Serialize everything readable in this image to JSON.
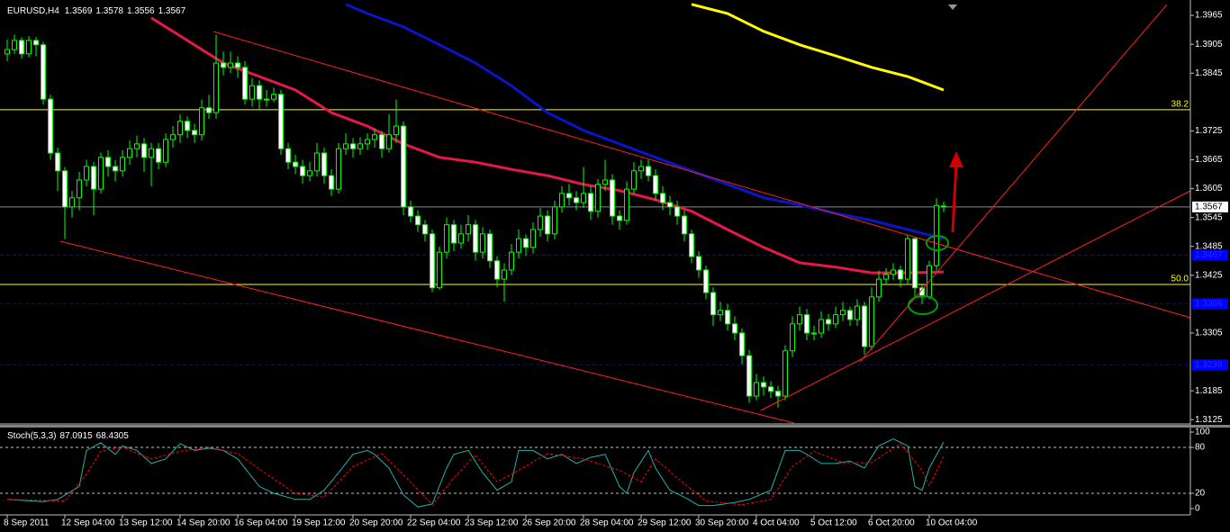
{
  "chart_data": [
    {
      "type": "candlestick",
      "symbol": "EURUSD,H4",
      "categories": [
        "8 Sep 2011",
        null,
        null,
        null,
        null,
        null,
        null,
        null,
        "12 Sep 04:00",
        null,
        null,
        null,
        null,
        null,
        null,
        null,
        "13 Sep 12:00",
        null,
        null,
        null,
        null,
        null,
        null,
        null,
        "14 Sep 20:00",
        null,
        null,
        null,
        null,
        null,
        null,
        null,
        "16 Sep 04:00",
        null,
        null,
        null,
        null,
        null,
        null,
        null,
        "19 Sep 12:00",
        null,
        null,
        null,
        null,
        null,
        null,
        null,
        "20 Sep 20:00",
        null,
        null,
        null,
        null,
        null,
        null,
        null,
        "22 Sep 04:00",
        null,
        null,
        null,
        null,
        null,
        null,
        null,
        "23 Sep 12:00",
        null,
        null,
        null,
        null,
        null,
        null,
        null,
        "26 Sep 20:00",
        null,
        null,
        null,
        null,
        null,
        null,
        null,
        "28 Sep 04:00",
        null,
        null,
        null,
        null,
        null,
        null,
        null,
        "29 Sep 12:00",
        null,
        null,
        null,
        null,
        null,
        null,
        null,
        "30 Sep 20:00",
        null,
        null,
        null,
        null,
        null,
        null,
        null,
        "4 Oct 04:00",
        null,
        null,
        null,
        null,
        null,
        null,
        null,
        "5 Oct 12:00",
        null,
        null,
        null,
        null,
        null,
        null,
        null,
        "6 Oct 20:00",
        null,
        null,
        null,
        null,
        null,
        null,
        null,
        "10 Oct 04:00",
        null,
        null
      ],
      "open": [
        1.3885,
        1.3894,
        1.3913,
        1.3885,
        1.3913,
        1.3904,
        1.3791,
        1.3679,
        1.3642,
        1.3567,
        1.3586,
        1.3623,
        1.3651,
        1.3604,
        1.367,
        1.3651,
        1.3642,
        1.367,
        1.3688,
        1.3698,
        1.367,
        1.3688,
        1.366,
        1.3707,
        1.3717,
        1.3745,
        1.3726,
        1.3717,
        1.3773,
        1.3763,
        1.3866,
        1.3857,
        1.3866,
        1.3857,
        1.3791,
        1.3819,
        1.3791,
        1.3791,
        1.3801,
        1.3688,
        1.366,
        1.3651,
        1.3632,
        1.3642,
        1.3679,
        1.3632,
        1.3604,
        1.3688,
        1.3698,
        1.3688,
        1.3698,
        1.3707,
        1.3717,
        1.3688,
        1.3717,
        1.3735,
        1.3567,
        1.3548,
        1.353,
        1.3511,
        1.3399,
        1.3473,
        1.353,
        1.3492,
        1.3511,
        1.353,
        1.3473,
        1.3511,
        1.3455,
        1.3417,
        1.3436,
        1.3473,
        1.3501,
        1.3483,
        1.352,
        1.3548,
        1.3511,
        1.3567,
        1.3595,
        1.3586,
        1.3576,
        1.3595,
        1.3558,
        1.3614,
        1.3623,
        1.3548,
        1.3539,
        1.3604,
        1.3642,
        1.3651,
        1.3632,
        1.3595,
        1.3576,
        1.3567,
        1.3548,
        1.3511,
        1.3464,
        1.3436,
        1.3389,
        1.3343,
        1.3352,
        1.3324,
        1.3305,
        1.3258,
        1.3174,
        1.3202,
        1.3193,
        1.3184,
        1.3174,
        1.3268,
        1.3324,
        1.3343,
        1.3305,
        1.3305,
        1.3333,
        1.3324,
        1.3343,
        1.3352,
        1.3333,
        1.3361,
        1.3277,
        1.338,
        1.3417,
        1.3427,
        1.3436,
        1.3417,
        1.3501,
        1.3399,
        1.338,
        1.3445,
        1.3569
      ],
      "high": [
        1.3915,
        1.3925,
        1.392,
        1.3922,
        1.392,
        1.391,
        1.38,
        1.369,
        1.365,
        1.36,
        1.364,
        1.3665,
        1.366,
        1.368,
        1.3685,
        1.3665,
        1.3685,
        1.3705,
        1.3715,
        1.371,
        1.37,
        1.37,
        1.372,
        1.3735,
        1.376,
        1.3755,
        1.374,
        1.379,
        1.38,
        1.3925,
        1.389,
        1.389,
        1.388,
        1.387,
        1.3835,
        1.383,
        1.381,
        1.3815,
        1.381,
        1.37,
        1.3675,
        1.3665,
        1.366,
        1.37,
        1.369,
        1.3645,
        1.37,
        1.372,
        1.371,
        1.3712,
        1.372,
        1.373,
        1.3725,
        1.376,
        1.379,
        1.3745,
        1.358,
        1.356,
        1.354,
        1.352,
        1.3485,
        1.3545,
        1.354,
        1.353,
        1.355,
        1.354,
        1.3525,
        1.352,
        1.3465,
        1.345,
        1.349,
        1.352,
        1.351,
        1.3535,
        1.3565,
        1.356,
        1.358,
        1.361,
        1.3615,
        1.36,
        1.365,
        1.361,
        1.3625,
        1.3665,
        1.3635,
        1.356,
        1.362,
        1.366,
        1.3665,
        1.3665,
        1.3645,
        1.361,
        1.359,
        1.358,
        1.356,
        1.352,
        1.3475,
        1.3445,
        1.34,
        1.337,
        1.3365,
        1.334,
        1.3315,
        1.327,
        1.322,
        1.3215,
        1.3205,
        1.3195,
        1.328,
        1.334,
        1.336,
        1.3355,
        1.332,
        1.335,
        1.3345,
        1.336,
        1.337,
        1.336,
        1.3375,
        1.337,
        1.34,
        1.3435,
        1.344,
        1.345,
        1.3445,
        1.351,
        1.3505,
        1.3405,
        1.3455,
        1.3585,
        1.3578
      ],
      "low": [
        1.387,
        1.3885,
        1.3875,
        1.3878,
        1.388,
        1.378,
        1.3665,
        1.36,
        1.35,
        1.3545,
        1.356,
        1.361,
        1.355,
        1.3595,
        1.363,
        1.362,
        1.363,
        1.3655,
        1.367,
        1.364,
        1.361,
        1.3645,
        1.365,
        1.369,
        1.37,
        1.371,
        1.37,
        1.3705,
        1.375,
        1.375,
        1.384,
        1.3845,
        1.3835,
        1.378,
        1.3775,
        1.377,
        1.3775,
        1.3785,
        1.3675,
        1.3645,
        1.3635,
        1.3615,
        1.362,
        1.363,
        1.3615,
        1.359,
        1.3595,
        1.3675,
        1.367,
        1.3675,
        1.3685,
        1.369,
        1.367,
        1.368,
        1.37,
        1.355,
        1.3535,
        1.3515,
        1.3495,
        1.339,
        1.3395,
        1.346,
        1.3475,
        1.348,
        1.3495,
        1.3455,
        1.346,
        1.344,
        1.34,
        1.337,
        1.3425,
        1.346,
        1.3465,
        1.347,
        1.3505,
        1.3495,
        1.35,
        1.3555,
        1.357,
        1.356,
        1.3565,
        1.354,
        1.3545,
        1.36,
        1.353,
        1.352,
        1.353,
        1.3595,
        1.3625,
        1.362,
        1.358,
        1.356,
        1.355,
        1.353,
        1.3495,
        1.345,
        1.342,
        1.3375,
        1.332,
        1.333,
        1.331,
        1.329,
        1.324,
        1.316,
        1.3165,
        1.3175,
        1.317,
        1.315,
        1.3165,
        1.3255,
        1.331,
        1.329,
        1.329,
        1.3295,
        1.331,
        1.3315,
        1.333,
        1.332,
        1.332,
        1.326,
        1.327,
        1.337,
        1.3405,
        1.3415,
        1.34,
        1.3405,
        1.338,
        1.3365,
        1.3375,
        1.3435,
        1.3556
      ],
      "close": [
        1.3894,
        1.3913,
        1.3885,
        1.3913,
        1.3904,
        1.3791,
        1.3679,
        1.3642,
        1.3567,
        1.3586,
        1.3623,
        1.3651,
        1.3604,
        1.367,
        1.3651,
        1.3642,
        1.367,
        1.3688,
        1.3698,
        1.367,
        1.3688,
        1.366,
        1.3707,
        1.3717,
        1.3745,
        1.3726,
        1.3717,
        1.3773,
        1.3763,
        1.3866,
        1.3857,
        1.3866,
        1.3857,
        1.3791,
        1.3819,
        1.3791,
        1.3791,
        1.3801,
        1.3688,
        1.366,
        1.3651,
        1.3632,
        1.3642,
        1.3679,
        1.3632,
        1.3604,
        1.3688,
        1.3698,
        1.3688,
        1.3698,
        1.3707,
        1.3717,
        1.3688,
        1.3717,
        1.3735,
        1.3567,
        1.3548,
        1.353,
        1.3511,
        1.3399,
        1.3473,
        1.353,
        1.3492,
        1.3511,
        1.353,
        1.3473,
        1.3511,
        1.3455,
        1.3417,
        1.3436,
        1.3473,
        1.3501,
        1.3483,
        1.352,
        1.3548,
        1.3511,
        1.3567,
        1.3595,
        1.3586,
        1.3576,
        1.3595,
        1.3558,
        1.3614,
        1.3623,
        1.3548,
        1.3539,
        1.3604,
        1.3642,
        1.3651,
        1.3632,
        1.3595,
        1.3576,
        1.3567,
        1.3548,
        1.3511,
        1.3464,
        1.3436,
        1.3389,
        1.3343,
        1.3352,
        1.3324,
        1.3305,
        1.3258,
        1.3174,
        1.3202,
        1.3193,
        1.3184,
        1.3174,
        1.3268,
        1.3324,
        1.3343,
        1.3305,
        1.3305,
        1.3333,
        1.3324,
        1.3343,
        1.3352,
        1.3333,
        1.3361,
        1.3277,
        1.338,
        1.3417,
        1.3427,
        1.3436,
        1.3417,
        1.3501,
        1.3399,
        1.338,
        1.3445,
        1.357,
        1.3567
      ],
      "bull_color": "#000000",
      "bear_color": "#ffffff",
      "wick_color": "#00ff00",
      "ylim": [
        1.3116,
        1.3997
      ],
      "yticks": [
        1.3965,
        1.3905,
        1.3845,
        1.3725,
        1.3665,
        1.3605,
        1.3545,
        1.3485,
        1.3425,
        1.3305,
        1.3185,
        1.3125
      ],
      "lines": [
        {
          "color": "#e8174a",
          "x": [
            20,
            25,
            30,
            35,
            40,
            45,
            50,
            55,
            60,
            65,
            70,
            75,
            80,
            85,
            90,
            95,
            100,
            105,
            110,
            115,
            120,
            125,
            130
          ],
          "values": [
            1.396,
            1.3913,
            1.3866,
            1.3838,
            1.381,
            1.3763,
            1.3735,
            1.3698,
            1.367,
            1.366,
            1.3645,
            1.3632,
            1.3614,
            1.3601,
            1.3582,
            1.3558,
            1.352,
            1.3483,
            1.3451,
            1.3442,
            1.343,
            1.343,
            1.3432
          ]
        },
        {
          "color": "#0a14c8",
          "x": [
            47,
            50,
            55,
            60,
            65,
            70,
            75,
            80,
            85,
            90,
            95,
            100,
            105,
            110,
            115,
            120,
            125,
            130
          ],
          "values": [
            1.3988,
            1.3969,
            1.3941,
            1.3904,
            1.3866,
            1.3819,
            1.3763,
            1.3726,
            1.3698,
            1.367,
            1.3642,
            1.3614,
            1.3586,
            1.3571,
            1.3554,
            1.3539,
            1.352,
            1.3501
          ]
        },
        {
          "color": "#ffff00",
          "x": [
            95,
            100,
            105,
            110,
            115,
            120,
            125,
            130
          ],
          "values": [
            1.3988,
            1.3969,
            1.3932,
            1.3904,
            1.3881,
            1.3857,
            1.3838,
            1.381
          ]
        }
      ],
      "bid_line_color": "#7f8c98",
      "levels": [
        {
          "value": 1.3467,
          "color": "#0000ff"
        },
        {
          "value": 1.3366,
          "color": "#0000ff"
        },
        {
          "value": 1.3239,
          "color": "#0000ff"
        }
      ],
      "fib_levels": [
        {
          "value": 1.3769,
          "label": "38.2",
          "color": "#ffff00"
        },
        {
          "value": 1.3406,
          "label": "50.0",
          "color": "#ffff00"
        }
      ]
    },
    {
      "type": "line",
      "title": "Stoch(5,3,3)",
      "ylim": [
        -8.2,
        104.7
      ],
      "yticks": [
        100,
        80,
        20,
        0
      ],
      "levels": [
        80,
        20
      ],
      "series": [
        {
          "color": "#20b2aa",
          "style": "solid",
          "x": [
            0,
            5,
            7,
            10,
            11,
            13,
            15,
            16,
            18,
            20,
            22,
            24,
            26,
            28,
            30,
            32,
            35,
            37,
            40,
            42,
            44,
            46,
            48,
            50,
            51,
            53,
            55,
            57,
            59,
            61,
            62,
            64,
            66,
            68,
            70,
            71,
            73,
            75,
            77,
            79,
            81,
            83,
            85,
            86,
            87,
            89,
            90,
            92,
            94,
            96,
            98,
            101,
            103,
            106,
            108,
            110,
            111,
            113,
            115,
            117,
            119,
            121,
            123,
            125,
            126,
            127,
            128,
            130
          ],
          "values": [
            12,
            9,
            12,
            29,
            76,
            86,
            71,
            82,
            76,
            59,
            65,
            85,
            76,
            79,
            76,
            65,
            29,
            20,
            12,
            12,
            24,
            47,
            71,
            76,
            71,
            53,
            18,
            2,
            6,
            53,
            71,
            76,
            47,
            24,
            35,
            76,
            76,
            65,
            71,
            59,
            67,
            71,
            29,
            20,
            47,
            76,
            53,
            24,
            15,
            4,
            4,
            8,
            12,
            24,
            76,
            76,
            71,
            59,
            59,
            62,
            53,
            82,
            91,
            82,
            29,
            24,
            53,
            87.0915
          ]
        },
        {
          "color": "#ff0000",
          "style": "dashed",
          "x": [
            0,
            8,
            11,
            13,
            16,
            20,
            24,
            28,
            32,
            36,
            40,
            44,
            48,
            52,
            56,
            59,
            62,
            65,
            68,
            71,
            75,
            80,
            85,
            88,
            90,
            93,
            97,
            102,
            106,
            109,
            112,
            116,
            120,
            124,
            127,
            128,
            130
          ],
          "values": [
            12,
            10,
            45,
            75,
            80,
            65,
            75,
            80,
            72,
            45,
            20,
            15,
            55,
            72,
            35,
            5,
            40,
            70,
            35,
            50,
            72,
            65,
            50,
            35,
            65,
            40,
            10,
            5,
            12,
            55,
            75,
            60,
            60,
            85,
            50,
            30,
            68.4305
          ]
        }
      ]
    }
  ]
}
